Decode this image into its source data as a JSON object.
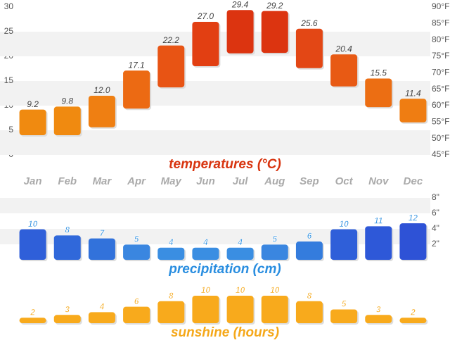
{
  "chart_data": [
    {
      "type": "floating_bar",
      "title": "temperatures (°C)",
      "title_color": "#d8340f",
      "categories": [
        "Jan",
        "Feb",
        "Mar",
        "Apr",
        "May",
        "Jun",
        "Jul",
        "Aug",
        "Sep",
        "Oct",
        "Nov",
        "Dec"
      ],
      "values": [
        9.2,
        9.8,
        12.0,
        17.1,
        22.2,
        27.0,
        29.4,
        29.2,
        25.6,
        20.4,
        15.5,
        11.4
      ],
      "value_labels": [
        "9.2",
        "9.8",
        "12.0",
        "17.1",
        "22.2",
        "27.0",
        "29.4",
        "29.2",
        "25.6",
        "20.4",
        "15.5",
        "11.4"
      ],
      "lows": [
        4.0,
        4.0,
        5.6,
        9.4,
        13.7,
        18.0,
        20.6,
        20.7,
        17.6,
        13.9,
        9.7,
        6.6
      ],
      "colors": [
        "#f08a10",
        "#f08a10",
        "#ef7f12",
        "#ec6a13",
        "#e85414",
        "#e23f12",
        "#dc3410",
        "#dc3410",
        "#e34715",
        "#e85a14",
        "#ec6e13",
        "#ef7d12"
      ],
      "ylim": [
        0,
        30
      ],
      "yticks": [
        0,
        5,
        10,
        15,
        20,
        25,
        30
      ],
      "y2lim": [
        45,
        90
      ],
      "y2ticks": [
        {
          "value": 45,
          "label": "45°F"
        },
        {
          "value": 50,
          "label": "50°F"
        },
        {
          "value": 55,
          "label": "55°F"
        },
        {
          "value": 60,
          "label": "60°F"
        },
        {
          "value": 65,
          "label": "65°F"
        },
        {
          "value": 70,
          "label": "70°F"
        },
        {
          "value": 75,
          "label": "75°F"
        },
        {
          "value": 80,
          "label": "80°F"
        },
        {
          "value": 85,
          "label": "85°F"
        },
        {
          "value": 90,
          "label": "90°F"
        }
      ],
      "grid": true
    },
    {
      "type": "bar",
      "title": "precipitation (cm)",
      "title_color": "#2a8ee0",
      "values": [
        3.94,
        3.15,
        2.76,
        1.97,
        1.57,
        1.57,
        1.57,
        1.97,
        2.36,
        3.94,
        4.33,
        4.72
      ],
      "value_labels": [
        "10",
        "8",
        "7",
        "5",
        "4",
        "4",
        "4",
        "5",
        "6",
        "10",
        "11",
        "12"
      ],
      "colors": [
        "#2f5fd9",
        "#3068da",
        "#3272db",
        "#3a86e0",
        "#3a8ee2",
        "#3a8ee2",
        "#3a8ee2",
        "#3a86e0",
        "#347cdd",
        "#2f5fd9",
        "#2e58d8",
        "#2e52d6"
      ],
      "label_color": "#2a8ee0",
      "ylim": [
        0,
        8
      ],
      "yticks": [
        {
          "value": 2,
          "label": "2\""
        },
        {
          "value": 4,
          "label": "4\""
        },
        {
          "value": 6,
          "label": "6\""
        },
        {
          "value": 8,
          "label": "8\""
        }
      ],
      "grid": true
    },
    {
      "type": "bar",
      "title": "sunshine (hours)",
      "title_color": "#f5a81a",
      "values": [
        2,
        3,
        4,
        6,
        8,
        10,
        10,
        10,
        8,
        5,
        3,
        2
      ],
      "color": "#f8aa1c",
      "label_color": "#f5a81a",
      "ylim": [
        0,
        10
      ]
    }
  ]
}
